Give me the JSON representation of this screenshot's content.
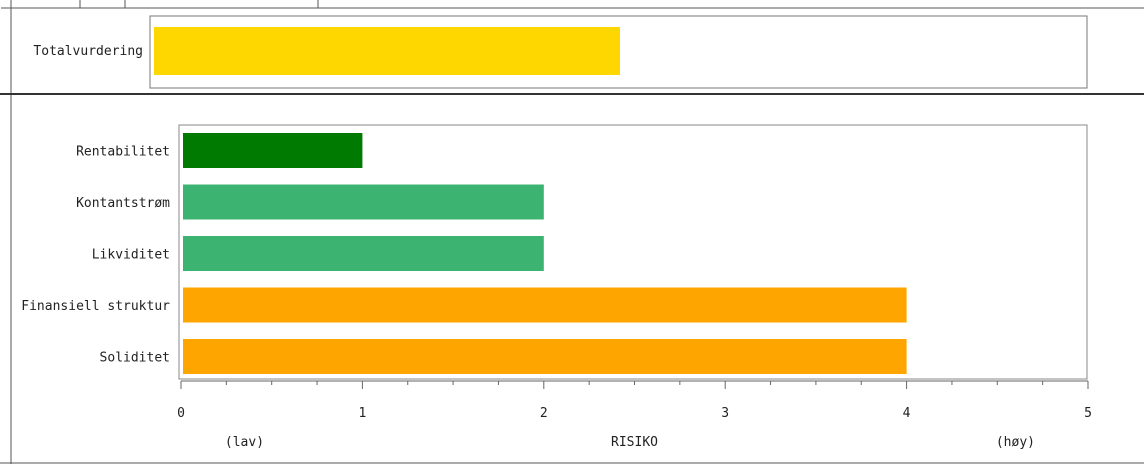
{
  "chart_data": [
    {
      "type": "bar",
      "orientation": "horizontal",
      "categories": [
        "Totalvurdering"
      ],
      "values": [
        2.5
      ],
      "colors": [
        "#ffd700"
      ],
      "xlim": [
        0,
        5
      ]
    },
    {
      "type": "bar",
      "orientation": "horizontal",
      "categories": [
        "Rentabilitet",
        "Kontantstrøm",
        "Likviditet",
        "Finansiell struktur",
        "Soliditet"
      ],
      "values": [
        1,
        2,
        2,
        4,
        4
      ],
      "colors": [
        "#007a00",
        "#3cb371",
        "#3cb371",
        "#ffa500",
        "#ffa500"
      ],
      "xlim": [
        0,
        5
      ],
      "xticks": [
        "0",
        "1",
        "2",
        "3",
        "4",
        "5"
      ],
      "xlabel": "RISIKO",
      "xlabel_low": "(lav)",
      "xlabel_high": "(høy)",
      "grid": false
    }
  ]
}
